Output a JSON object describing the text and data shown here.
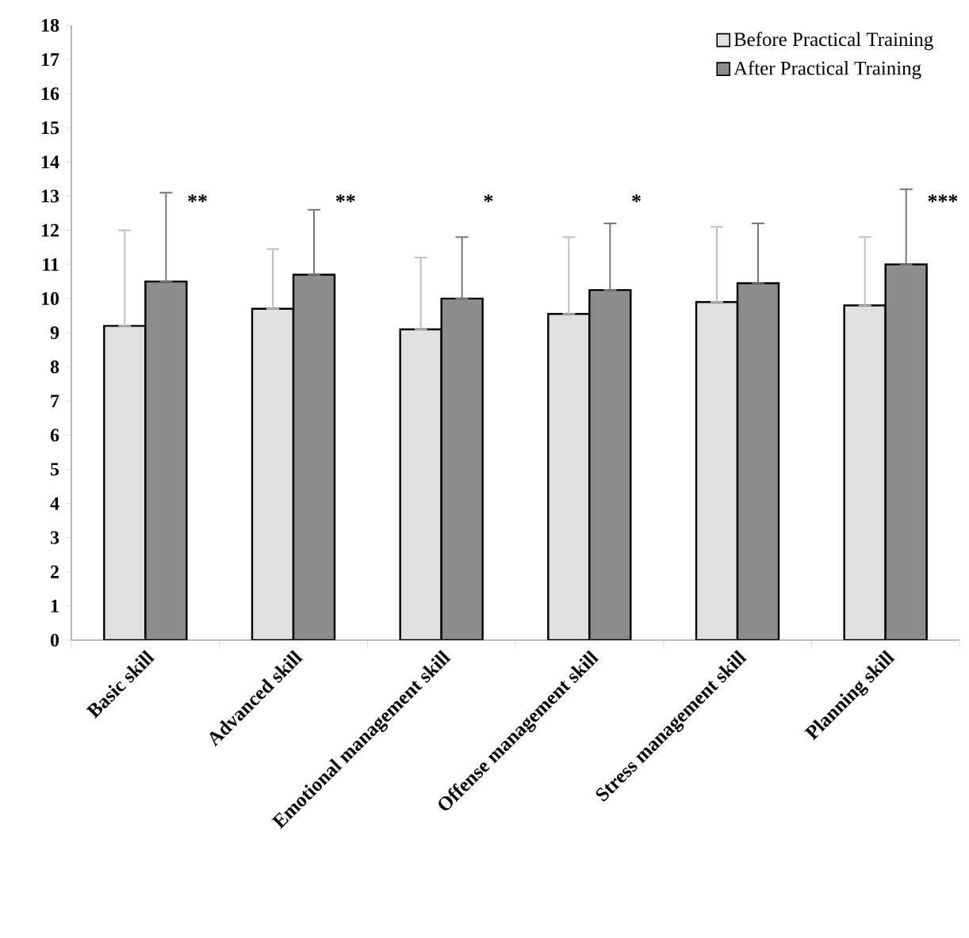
{
  "chart_data": {
    "type": "bar",
    "categories": [
      "Basic skill",
      "Advanced skill",
      "Emotional management skill",
      "Offense management skill",
      "Stress management skill",
      "Planning skill"
    ],
    "series": [
      {
        "name": "Before Practical Training",
        "color": "#e0e0e0",
        "values": [
          9.2,
          9.7,
          9.1,
          9.55,
          9.9,
          9.8
        ],
        "errors": [
          [
            9.2,
            12.0
          ],
          [
            9.7,
            11.45
          ],
          [
            9.1,
            11.2
          ],
          [
            9.55,
            11.8
          ],
          [
            9.9,
            12.1
          ],
          [
            9.8,
            11.8
          ]
        ]
      },
      {
        "name": "After Practical Training",
        "color": "#8c8c8c",
        "values": [
          10.5,
          10.7,
          10.0,
          10.25,
          10.45,
          11.0
        ],
        "errors": [
          [
            10.5,
            13.1
          ],
          [
            10.7,
            12.6
          ],
          [
            10.0,
            11.8
          ],
          [
            10.25,
            12.2
          ],
          [
            10.45,
            12.2
          ],
          [
            11.0,
            13.2
          ]
        ]
      }
    ],
    "ylim": [
      0,
      18
    ],
    "yticks": [
      0,
      1,
      2,
      3,
      4,
      5,
      6,
      7,
      8,
      9,
      10,
      11,
      12,
      13,
      14,
      15,
      16,
      17,
      18
    ],
    "annotations": [
      "**",
      "**",
      "*",
      "*",
      "***"
    ],
    "legend": "top right",
    "grid": false
  }
}
